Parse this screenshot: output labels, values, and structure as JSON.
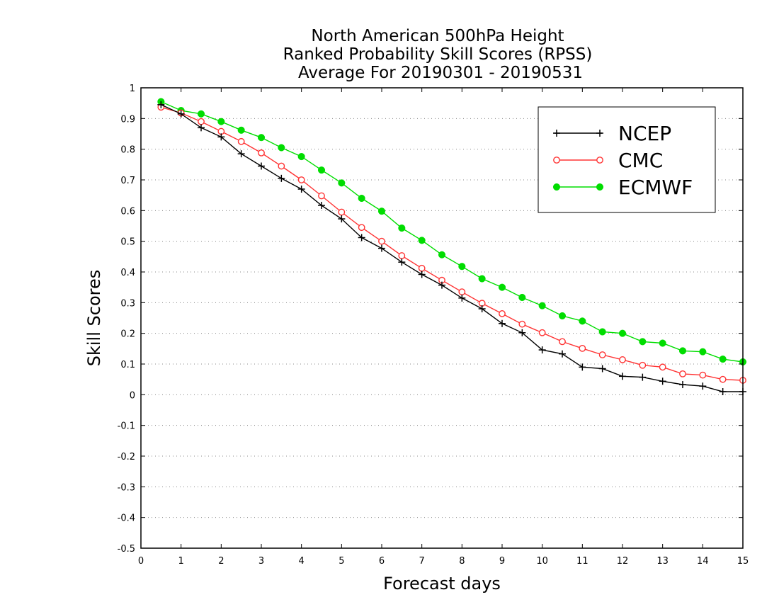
{
  "chart_data": {
    "type": "line",
    "title": [
      "North American 500hPa Height",
      "Ranked Probability Skill Scores (RPSS)",
      "Average For 20190301 - 20190531"
    ],
    "xlabel": "Forecast days",
    "ylabel": "Skill Scores",
    "xlim": [
      0,
      15
    ],
    "ylim": [
      -0.5,
      1
    ],
    "xticks": [
      0,
      1,
      2,
      3,
      4,
      5,
      6,
      7,
      8,
      9,
      10,
      11,
      12,
      13,
      14,
      15
    ],
    "xtick_labels": [
      "0",
      "1",
      "2",
      "3",
      "4",
      "5",
      "6",
      "7",
      "8",
      "9",
      "10",
      "11",
      "12",
      "13",
      "14",
      "15"
    ],
    "yticks": [
      -0.5,
      -0.4,
      -0.3,
      -0.2,
      -0.1,
      0,
      0.1,
      0.2,
      0.3,
      0.4,
      0.5,
      0.6,
      0.7,
      0.8,
      0.9,
      1
    ],
    "ytick_labels": [
      "-0.5",
      "-0.4",
      "-0.3",
      "-0.2",
      "-0.1",
      "0",
      "0.1",
      "0.2",
      "0.3",
      "0.4",
      "0.5",
      "0.6",
      "0.7",
      "0.8",
      "0.9",
      "1"
    ],
    "grid": "horizontal dotted",
    "legend_position": "top-right",
    "x": [
      0.5,
      1,
      1.5,
      2,
      2.5,
      3,
      3.5,
      4,
      4.5,
      5,
      5.5,
      6,
      6.5,
      7,
      7.5,
      8,
      8.5,
      9,
      9.5,
      10,
      10.5,
      11,
      11.5,
      12,
      12.5,
      13,
      13.5,
      14,
      14.5,
      15
    ],
    "series": [
      {
        "name": "NCEP",
        "color": "#000000",
        "marker": "plus",
        "values": [
          0.945,
          0.915,
          0.87,
          0.84,
          0.785,
          0.745,
          0.705,
          0.67,
          0.617,
          0.573,
          0.512,
          0.477,
          0.432,
          0.392,
          0.357,
          0.315,
          0.28,
          0.232,
          0.202,
          0.146,
          0.133,
          0.09,
          0.085,
          0.06,
          0.057,
          0.044,
          0.033,
          0.028,
          0.01,
          0.01
        ]
      },
      {
        "name": "CMC",
        "color": "#ff3333",
        "marker": "open-circle",
        "values": [
          0.937,
          0.918,
          0.89,
          0.858,
          0.825,
          0.788,
          0.745,
          0.7,
          0.648,
          0.595,
          0.545,
          0.5,
          0.453,
          0.412,
          0.373,
          0.335,
          0.298,
          0.264,
          0.23,
          0.202,
          0.173,
          0.151,
          0.13,
          0.114,
          0.096,
          0.09,
          0.068,
          0.064,
          0.05,
          0.047
        ]
      },
      {
        "name": "ECMWF",
        "color": "#00dd00",
        "marker": "filled-circle",
        "values": [
          0.955,
          0.926,
          0.915,
          0.89,
          0.862,
          0.838,
          0.805,
          0.776,
          0.732,
          0.69,
          0.64,
          0.598,
          0.543,
          0.503,
          0.456,
          0.418,
          0.378,
          0.35,
          0.317,
          0.29,
          0.257,
          0.24,
          0.205,
          0.2,
          0.173,
          0.168,
          0.143,
          0.14,
          0.116,
          0.107
        ]
      }
    ]
  }
}
